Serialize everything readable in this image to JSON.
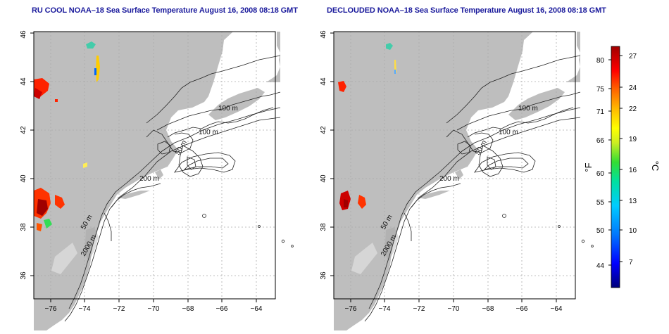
{
  "panels": [
    {
      "title": "RU COOL NOAA–18 Sea Surface Temperature August 16, 2008 08:18 GMT",
      "cloud_masked": false
    },
    {
      "title": "DECLOUDED NOAA–18 Sea Surface Temperature August 16, 2008 08:18 GMT",
      "cloud_masked": true
    }
  ],
  "axes": {
    "x_ticks": [
      "−76",
      "−74",
      "−72",
      "−70",
      "−68",
      "−66",
      "−64"
    ],
    "y_ticks": [
      "36",
      "38",
      "40",
      "42",
      "44",
      "46"
    ]
  },
  "contour_labels": {
    "c100a": "100 m",
    "c100b": "100 m",
    "c50a": "50 m",
    "c200": "200 m",
    "c50b": "50 m",
    "c2000": "2000 m"
  },
  "colorbar": {
    "fahrenheit_unit": "°F",
    "celsius_unit": "°C",
    "fahrenheit_ticks": [
      "80",
      "75",
      "71",
      "66",
      "60",
      "55",
      "50",
      "44"
    ],
    "celsius_ticks": [
      "27",
      "24",
      "22",
      "19",
      "16",
      "13",
      "10",
      "7"
    ],
    "colors": [
      "#00008b",
      "#0000ff",
      "#0077ff",
      "#00ccff",
      "#00e0a0",
      "#33dd33",
      "#ccee22",
      "#ffff00",
      "#ffbb00",
      "#ff6600",
      "#ff0000",
      "#b00000"
    ]
  },
  "colors": {
    "land": "#bebebe",
    "grid": "#aaaaaa",
    "title": "#1a1a9c",
    "contour": "#222222"
  }
}
